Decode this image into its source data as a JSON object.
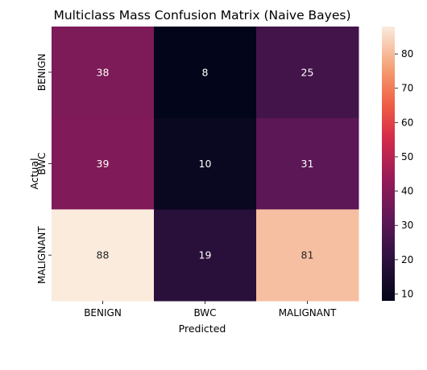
{
  "chart_data": {
    "type": "heatmap",
    "title": "Multiclass Mass Confusion Matrix (Naive Bayes)",
    "xlabel": "Predicted",
    "ylabel": "Actual",
    "x_categories": [
      "BENIGN",
      "BWC",
      "MALIGNANT"
    ],
    "y_categories": [
      "BENIGN",
      "BWC",
      "MALIGNANT"
    ],
    "values": [
      [
        38,
        8,
        25
      ],
      [
        39,
        10,
        31
      ],
      [
        88,
        19,
        81
      ]
    ],
    "colormap": "rocket",
    "colorbar": {
      "range": [
        8,
        88
      ],
      "ticks": [
        10,
        20,
        30,
        40,
        50,
        60,
        70,
        80
      ]
    }
  }
}
